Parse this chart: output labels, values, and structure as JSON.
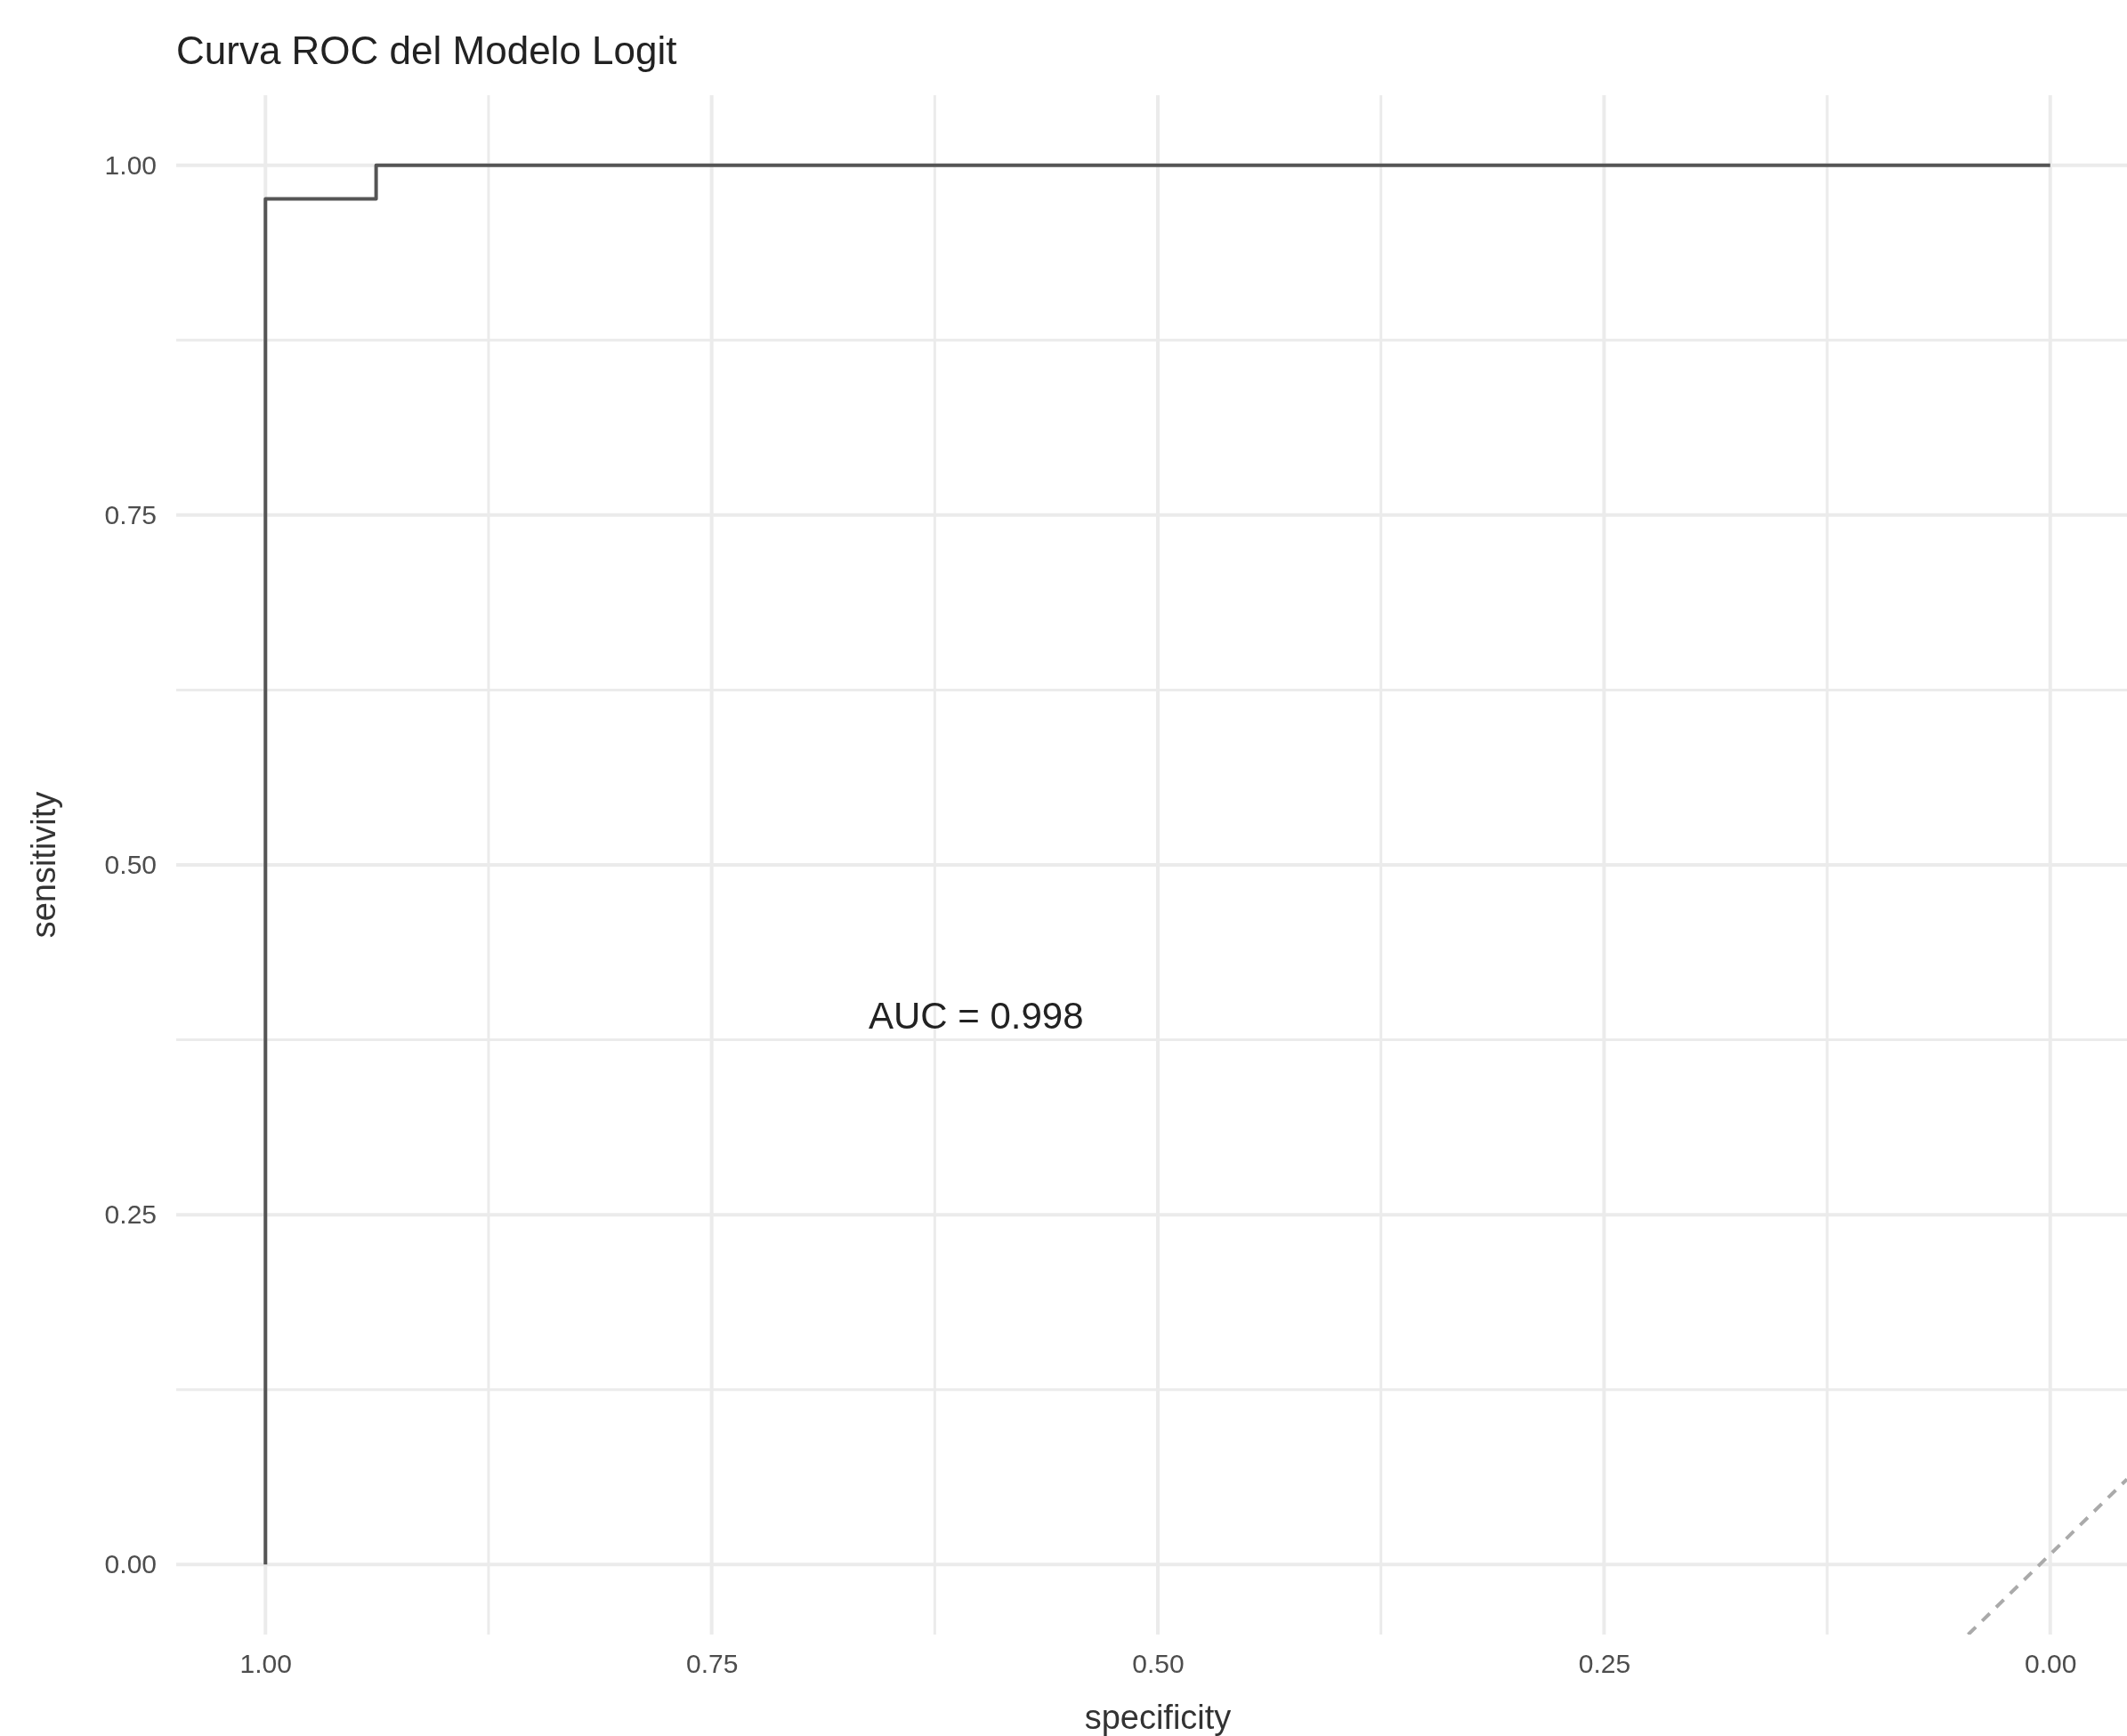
{
  "chart_data": {
    "type": "line",
    "title": "Curva ROC del Modelo Logit",
    "xlabel": "specificity",
    "ylabel": "sensitivity",
    "xlim": [
      1.05,
      -0.043
    ],
    "ylim": [
      -0.05,
      1.05
    ],
    "xticks": [
      {
        "value": 1,
        "label": "1.00"
      },
      {
        "value": 0.875,
        "label": null
      },
      {
        "value": 0.75,
        "label": "0.75"
      },
      {
        "value": 0.625,
        "label": null
      },
      {
        "value": 0.5,
        "label": "0.50"
      },
      {
        "value": 0.375,
        "label": null
      },
      {
        "value": 0.25,
        "label": "0.25"
      },
      {
        "value": 0.125,
        "label": null
      },
      {
        "value": 0,
        "label": "0.00"
      }
    ],
    "yticks": [
      {
        "value": 0,
        "label": "0.00"
      },
      {
        "value": 0.125,
        "label": null
      },
      {
        "value": 0.25,
        "label": "0.25"
      },
      {
        "value": 0.375,
        "label": null
      },
      {
        "value": 0.5,
        "label": "0.50"
      },
      {
        "value": 0.625,
        "label": null
      },
      {
        "value": 0.75,
        "label": "0.75"
      },
      {
        "value": 0.875,
        "label": null
      },
      {
        "value": 1,
        "label": "1.00"
      }
    ],
    "grid": true,
    "series": [
      {
        "color": "#aaaaaa",
        "line_style": "dashed",
        "x": [
          0.046,
          -0.043
        ],
        "values": [
          -0.05,
          0.061
        ]
      },
      {
        "color": "#555555",
        "line_style": "solid",
        "x": [
          1,
          1,
          0.938,
          0.938,
          0
        ],
        "values": [
          0,
          0.976,
          0.976,
          1,
          1
        ]
      }
    ],
    "annotations": [
      "AUC = 0.998"
    ]
  }
}
